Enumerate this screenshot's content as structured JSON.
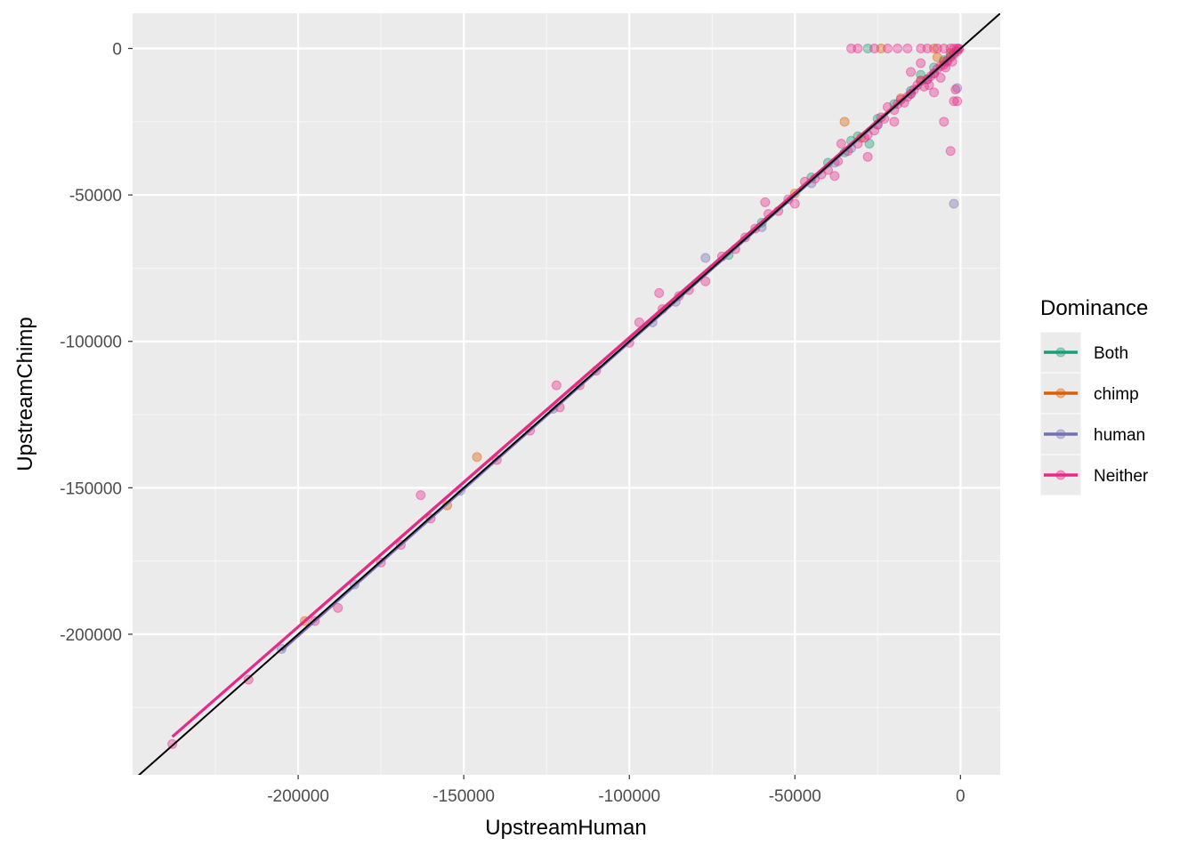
{
  "chart_data": {
    "type": "scatter",
    "xlabel": "UpstreamHuman",
    "ylabel": "UpstreamChimp",
    "xlim": [
      -250000,
      12000
    ],
    "ylim": [
      -248000,
      12000
    ],
    "x_ticks": [
      {
        "value": -200000,
        "label": "-200000"
      },
      {
        "value": -150000,
        "label": "-150000"
      },
      {
        "value": -100000,
        "label": "-100000"
      },
      {
        "value": -50000,
        "label": "-50000"
      },
      {
        "value": 0,
        "label": "0"
      }
    ],
    "y_ticks": [
      {
        "value": 0,
        "label": "0"
      },
      {
        "value": -50000,
        "label": "-50000"
      },
      {
        "value": -100000,
        "label": "-100000"
      },
      {
        "value": -150000,
        "label": "-150000"
      },
      {
        "value": -200000,
        "label": "-200000"
      }
    ],
    "grid": true,
    "background": "#ebebeb",
    "reference_line": {
      "slope": 1,
      "intercept": 0,
      "color": "#000000"
    },
    "legend": {
      "title": "Dominance",
      "placement": "right"
    },
    "series": [
      {
        "name": "Both",
        "color": "#1b9e77",
        "fit_x": [
          -122000,
          0
        ],
        "fit_y": [
          -120500,
          0
        ],
        "points": [
          [
            -28000,
            0
          ],
          [
            -27500,
            -32500
          ],
          [
            -31000,
            -30000
          ],
          [
            -12000,
            -9000
          ],
          [
            -8000,
            -6500
          ],
          [
            -40000,
            -39000
          ],
          [
            -35000,
            -35500
          ],
          [
            -20000,
            -19000
          ],
          [
            -15000,
            -14500
          ],
          [
            -5000,
            -4000
          ],
          [
            -60000,
            -59500
          ],
          [
            -70000,
            -70500
          ],
          [
            -3000,
            -2500
          ],
          [
            -2000,
            -1500
          ],
          [
            -45000,
            -44000
          ],
          [
            -10000,
            -10500
          ],
          [
            -25000,
            -24000
          ],
          [
            -33000,
            -31500
          ]
        ]
      },
      {
        "name": "chimp",
        "color": "#d95f02",
        "fit_x": [
          -198000,
          0
        ],
        "fit_y": [
          -195500,
          0
        ],
        "points": [
          [
            -198000,
            -195500
          ],
          [
            -146000,
            -139500
          ],
          [
            -155000,
            -156000
          ],
          [
            -35000,
            -25000
          ],
          [
            -24000,
            0
          ],
          [
            -8000,
            0
          ],
          [
            -7000,
            -3000
          ],
          [
            -30000,
            -30500
          ],
          [
            -18000,
            -17000
          ],
          [
            -5000,
            -4500
          ],
          [
            -50000,
            -49500
          ],
          [
            -3000,
            -1500
          ],
          [
            -12000,
            -11000
          ]
        ]
      },
      {
        "name": "human",
        "color": "#7570b3",
        "fit_x": [
          -205000,
          0
        ],
        "fit_y": [
          -205500,
          0
        ],
        "points": [
          [
            -205000,
            -205000
          ],
          [
            -183000,
            -183000
          ],
          [
            -151000,
            -151000
          ],
          [
            -123000,
            -123000
          ],
          [
            -93000,
            -93500
          ],
          [
            -86000,
            -86500
          ],
          [
            -77000,
            -71500
          ],
          [
            -2000,
            -53000
          ],
          [
            -38000,
            -39000
          ],
          [
            -25000,
            -26000
          ],
          [
            -45000,
            -46000
          ],
          [
            -60000,
            -61000
          ],
          [
            -15000,
            -15500
          ],
          [
            -8000,
            -8500
          ],
          [
            -1000,
            -13500
          ],
          [
            -33000,
            -34000
          ],
          [
            -4000,
            -4000
          ]
        ]
      },
      {
        "name": "Neither",
        "color": "#e7298a",
        "fit_x": [
          -238000,
          0
        ],
        "fit_y": [
          -235000,
          0
        ],
        "points": [
          [
            -238000,
            -237500
          ],
          [
            -188000,
            -191000
          ],
          [
            -163000,
            -152500
          ],
          [
            -169000,
            -169500
          ],
          [
            -122000,
            -115000
          ],
          [
            -121000,
            -122500
          ],
          [
            -110000,
            -110000
          ],
          [
            -97000,
            -93500
          ],
          [
            -90000,
            -89000
          ],
          [
            -91000,
            -83500
          ],
          [
            -85000,
            -84500
          ],
          [
            -82000,
            -82500
          ],
          [
            -77000,
            -79500
          ],
          [
            -72000,
            -71000
          ],
          [
            -65000,
            -64500
          ],
          [
            -62000,
            -61500
          ],
          [
            -58000,
            -56500
          ],
          [
            -59000,
            -52500
          ],
          [
            -52000,
            -51500
          ],
          [
            -50000,
            -53000
          ],
          [
            -47000,
            -45500
          ],
          [
            -40000,
            -41500
          ],
          [
            -38000,
            -43500
          ],
          [
            -36000,
            -32500
          ],
          [
            -34000,
            -35000
          ],
          [
            -31000,
            -32500
          ],
          [
            -28000,
            -29500
          ],
          [
            -28000,
            -37000
          ],
          [
            -26000,
            -28000
          ],
          [
            -25000,
            -26000
          ],
          [
            -24000,
            -23500
          ],
          [
            -22000,
            -20000
          ],
          [
            -20000,
            -21000
          ],
          [
            -19000,
            -19000
          ],
          [
            -18000,
            -17500
          ],
          [
            -16000,
            -16500
          ],
          [
            -15000,
            -15500
          ],
          [
            -14000,
            -14000
          ],
          [
            -13000,
            -12500
          ],
          [
            -12000,
            -11000
          ],
          [
            -10000,
            -10500
          ],
          [
            -9000,
            -9500
          ],
          [
            -8000,
            -8500
          ],
          [
            -7000,
            -7000
          ],
          [
            -6000,
            -6000
          ],
          [
            -5000,
            -5500
          ],
          [
            -4000,
            -4500
          ],
          [
            -3000,
            -3000
          ],
          [
            -2000,
            -2000
          ],
          [
            -1000,
            -1000
          ],
          [
            -500,
            -300
          ],
          [
            -3000,
            -35000
          ],
          [
            -8000,
            -15000
          ],
          [
            -5000,
            -25000
          ],
          [
            -20000,
            -25000
          ],
          [
            -15000,
            -8000
          ],
          [
            -33000,
            0
          ],
          [
            -31000,
            0
          ],
          [
            -26000,
            0
          ],
          [
            -22000,
            0
          ],
          [
            -19000,
            0
          ],
          [
            -16000,
            0
          ],
          [
            -12000,
            0
          ],
          [
            -10000,
            0
          ],
          [
            -7000,
            0
          ],
          [
            -5000,
            0
          ],
          [
            -3000,
            0
          ],
          [
            -2000,
            0
          ],
          [
            -1000,
            0
          ],
          [
            -500,
            0
          ],
          [
            -1500,
            -14000
          ],
          [
            -1000,
            -18000
          ],
          [
            -2000,
            -18000
          ],
          [
            -6000,
            -10000
          ],
          [
            -12000,
            -5000
          ],
          [
            -42000,
            -43000
          ],
          [
            -44000,
            -44500
          ],
          [
            -55000,
            -55500
          ],
          [
            -68000,
            -68500
          ],
          [
            -100000,
            -100500
          ],
          [
            -115000,
            -115000
          ],
          [
            -130000,
            -130500
          ],
          [
            -140000,
            -140500
          ],
          [
            -160000,
            -160500
          ],
          [
            -175000,
            -175500
          ],
          [
            -195000,
            -195500
          ],
          [
            -215000,
            -215500
          ],
          [
            -37000,
            -38500
          ],
          [
            -29000,
            -30500
          ],
          [
            -23000,
            -24000
          ],
          [
            -17000,
            -18500
          ],
          [
            -11000,
            -13000
          ],
          [
            -4500,
            -6500
          ],
          [
            -2500,
            -4500
          ],
          [
            -9500,
            -12500
          ]
        ]
      }
    ]
  }
}
